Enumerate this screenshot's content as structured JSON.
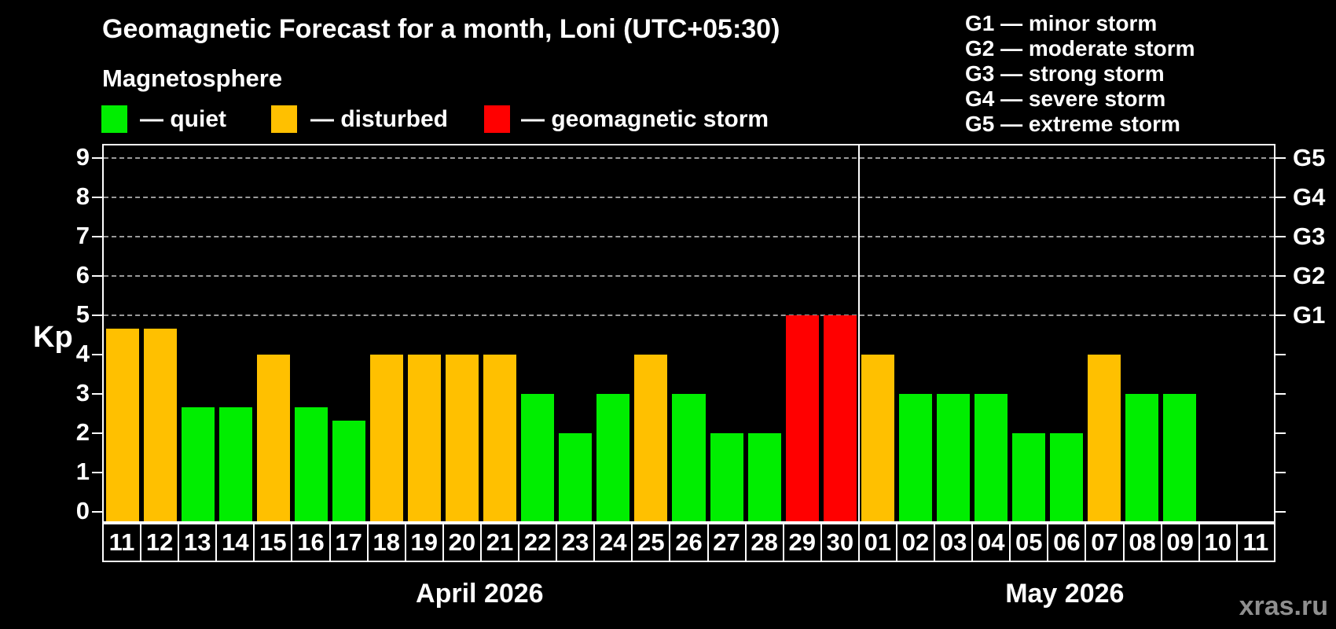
{
  "header": {
    "title": "Geomagnetic Forecast for a month, Loni (UTC+05:30)",
    "subtitle": "Magnetosphere",
    "legend": [
      {
        "status": "quiet",
        "label": "— quiet"
      },
      {
        "status": "disturbed",
        "label": "— disturbed"
      },
      {
        "status": "storm",
        "label": "— geomagnetic storm"
      }
    ],
    "g_legend": [
      "G1 — minor storm",
      "G2 — moderate storm",
      "G3 — strong storm",
      "G4 — severe storm",
      "G5 — extreme storm"
    ]
  },
  "colors": {
    "quiet": "#00ee00",
    "disturbed": "#ffc000",
    "storm": "#ff0000",
    "grid": "#9a9a9a",
    "frame": "#ffffff",
    "watermark": "#8f8f8f"
  },
  "chart_data": {
    "type": "bar",
    "title": "Geomagnetic Forecast for a month, Loni (UTC+05:30)",
    "ylabel": "Kp",
    "ylim": [
      -0.3,
      9.35
    ],
    "y_ticks": [
      0,
      1,
      2,
      3,
      4,
      5,
      6,
      7,
      8,
      9
    ],
    "grid": "dashed horizontal at Kp 5-9 only",
    "legend_position": "top-left",
    "g_levels": [
      {
        "kp": 5,
        "label": "G1"
      },
      {
        "kp": 6,
        "label": "G2"
      },
      {
        "kp": 7,
        "label": "G3"
      },
      {
        "kp": 8,
        "label": "G4"
      },
      {
        "kp": 9,
        "label": "G5"
      }
    ],
    "months": [
      {
        "label": "April 2026",
        "days": [
          {
            "day": "11",
            "kp": 4.67,
            "status": "disturbed"
          },
          {
            "day": "12",
            "kp": 4.67,
            "status": "disturbed"
          },
          {
            "day": "13",
            "kp": 2.67,
            "status": "quiet"
          },
          {
            "day": "14",
            "kp": 2.67,
            "status": "quiet"
          },
          {
            "day": "15",
            "kp": 4,
            "status": "disturbed"
          },
          {
            "day": "16",
            "kp": 2.67,
            "status": "quiet"
          },
          {
            "day": "17",
            "kp": 2.33,
            "status": "quiet"
          },
          {
            "day": "18",
            "kp": 4,
            "status": "disturbed"
          },
          {
            "day": "19",
            "kp": 4,
            "status": "disturbed"
          },
          {
            "day": "20",
            "kp": 4,
            "status": "disturbed"
          },
          {
            "day": "21",
            "kp": 4,
            "status": "disturbed"
          },
          {
            "day": "22",
            "kp": 3,
            "status": "quiet"
          },
          {
            "day": "23",
            "kp": 2,
            "status": "quiet"
          },
          {
            "day": "24",
            "kp": 3,
            "status": "quiet"
          },
          {
            "day": "25",
            "kp": 4,
            "status": "disturbed"
          },
          {
            "day": "26",
            "kp": 3,
            "status": "quiet"
          },
          {
            "day": "27",
            "kp": 2,
            "status": "quiet"
          },
          {
            "day": "28",
            "kp": 2,
            "status": "quiet"
          },
          {
            "day": "29",
            "kp": 5,
            "status": "storm"
          },
          {
            "day": "30",
            "kp": 5,
            "status": "storm"
          }
        ]
      },
      {
        "label": "May 2026",
        "days": [
          {
            "day": "01",
            "kp": 4,
            "status": "disturbed"
          },
          {
            "day": "02",
            "kp": 3,
            "status": "quiet"
          },
          {
            "day": "03",
            "kp": 3,
            "status": "quiet"
          },
          {
            "day": "04",
            "kp": 3,
            "status": "quiet"
          },
          {
            "day": "05",
            "kp": 2,
            "status": "quiet"
          },
          {
            "day": "06",
            "kp": 2,
            "status": "quiet"
          },
          {
            "day": "07",
            "kp": 4,
            "status": "disturbed"
          },
          {
            "day": "08",
            "kp": 3,
            "status": "quiet"
          },
          {
            "day": "09",
            "kp": 3,
            "status": "quiet"
          },
          {
            "day": "10",
            "kp": null,
            "status": null
          },
          {
            "day": "11",
            "kp": null,
            "status": null
          }
        ]
      }
    ]
  },
  "watermark": "xras.ru"
}
